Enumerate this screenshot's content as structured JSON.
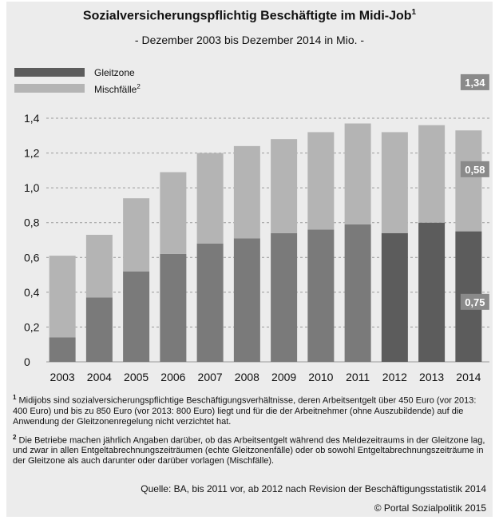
{
  "header": {
    "title": "Sozialversicherungspflichtig Beschäftigte im Midi-Job",
    "title_note": "1",
    "subtitle": "- Dezember 2003 bis Dezember 2014 in Mio. -"
  },
  "legend": {
    "gleitzone": "Gleitzone",
    "mischfaelle": "Mischfälle",
    "mischfaelle_note": "2"
  },
  "colors": {
    "gleitzone_early": "#7a7a7a",
    "gleitzone_revised": "#5c5c5c",
    "mischfaelle": "#b4b4b4",
    "label_box": "#8a8a8a"
  },
  "chart_data": {
    "type": "bar",
    "stacked": true,
    "categories": [
      "2003",
      "2004",
      "2005",
      "2006",
      "2007",
      "2008",
      "2009",
      "2010",
      "2011",
      "2012",
      "2013",
      "2014"
    ],
    "series": [
      {
        "name": "Gleitzone",
        "values": [
          0.14,
          0.37,
          0.52,
          0.62,
          0.68,
          0.71,
          0.74,
          0.76,
          0.79,
          0.74,
          0.8,
          0.75
        ]
      },
      {
        "name": "Mischfälle",
        "values": [
          0.47,
          0.36,
          0.42,
          0.47,
          0.52,
          0.53,
          0.54,
          0.56,
          0.58,
          0.58,
          0.56,
          0.58
        ]
      }
    ],
    "yticks": [
      "0",
      "0,2",
      "0,4",
      "0,6",
      "0,8",
      "1,0",
      "1,2",
      "1,4"
    ],
    "ylim": [
      0,
      1.4
    ],
    "grid": "dashed-horizontal",
    "annotations": {
      "total_2014": "1,34",
      "mischfaelle_2014": "0,58",
      "gleitzone_2014": "0,75"
    },
    "revised_from": "2012"
  },
  "footnotes": {
    "note1_mark": "1",
    "note1": "Midijobs sind sozialversicherungspflichtige Beschäftigungsverhältnisse, deren Arbeitsentgelt über 450 Euro (vor 2013: 400 Euro) und bis zu 850 Euro (vor 2013: 800 Euro) liegt und für die der Arbeitnehmer (ohne Auszubildende) auf die Anwendung der Gleitzonenregelung nicht verzichtet hat.",
    "note2_mark": "2",
    "note2": "Die Betriebe machen jährlich Angaben darüber, ob das Arbeitsentgelt während des Meldezeitraums in der Gleitzone lag, und zwar in allen Entgeltabrechnungszeiträumen (echte Gleitzonenfälle) oder ob sowohl Entgeltabrechnungszeiträume in der Gleitzone als auch darunter oder darüber vorlagen (Mischfälle).",
    "source": "Quelle: BA, bis 2011 vor, ab 2012 nach Revision der Beschäftigungsstatistik 2014",
    "copyright": "© Portal Sozialpolitik 2015"
  }
}
